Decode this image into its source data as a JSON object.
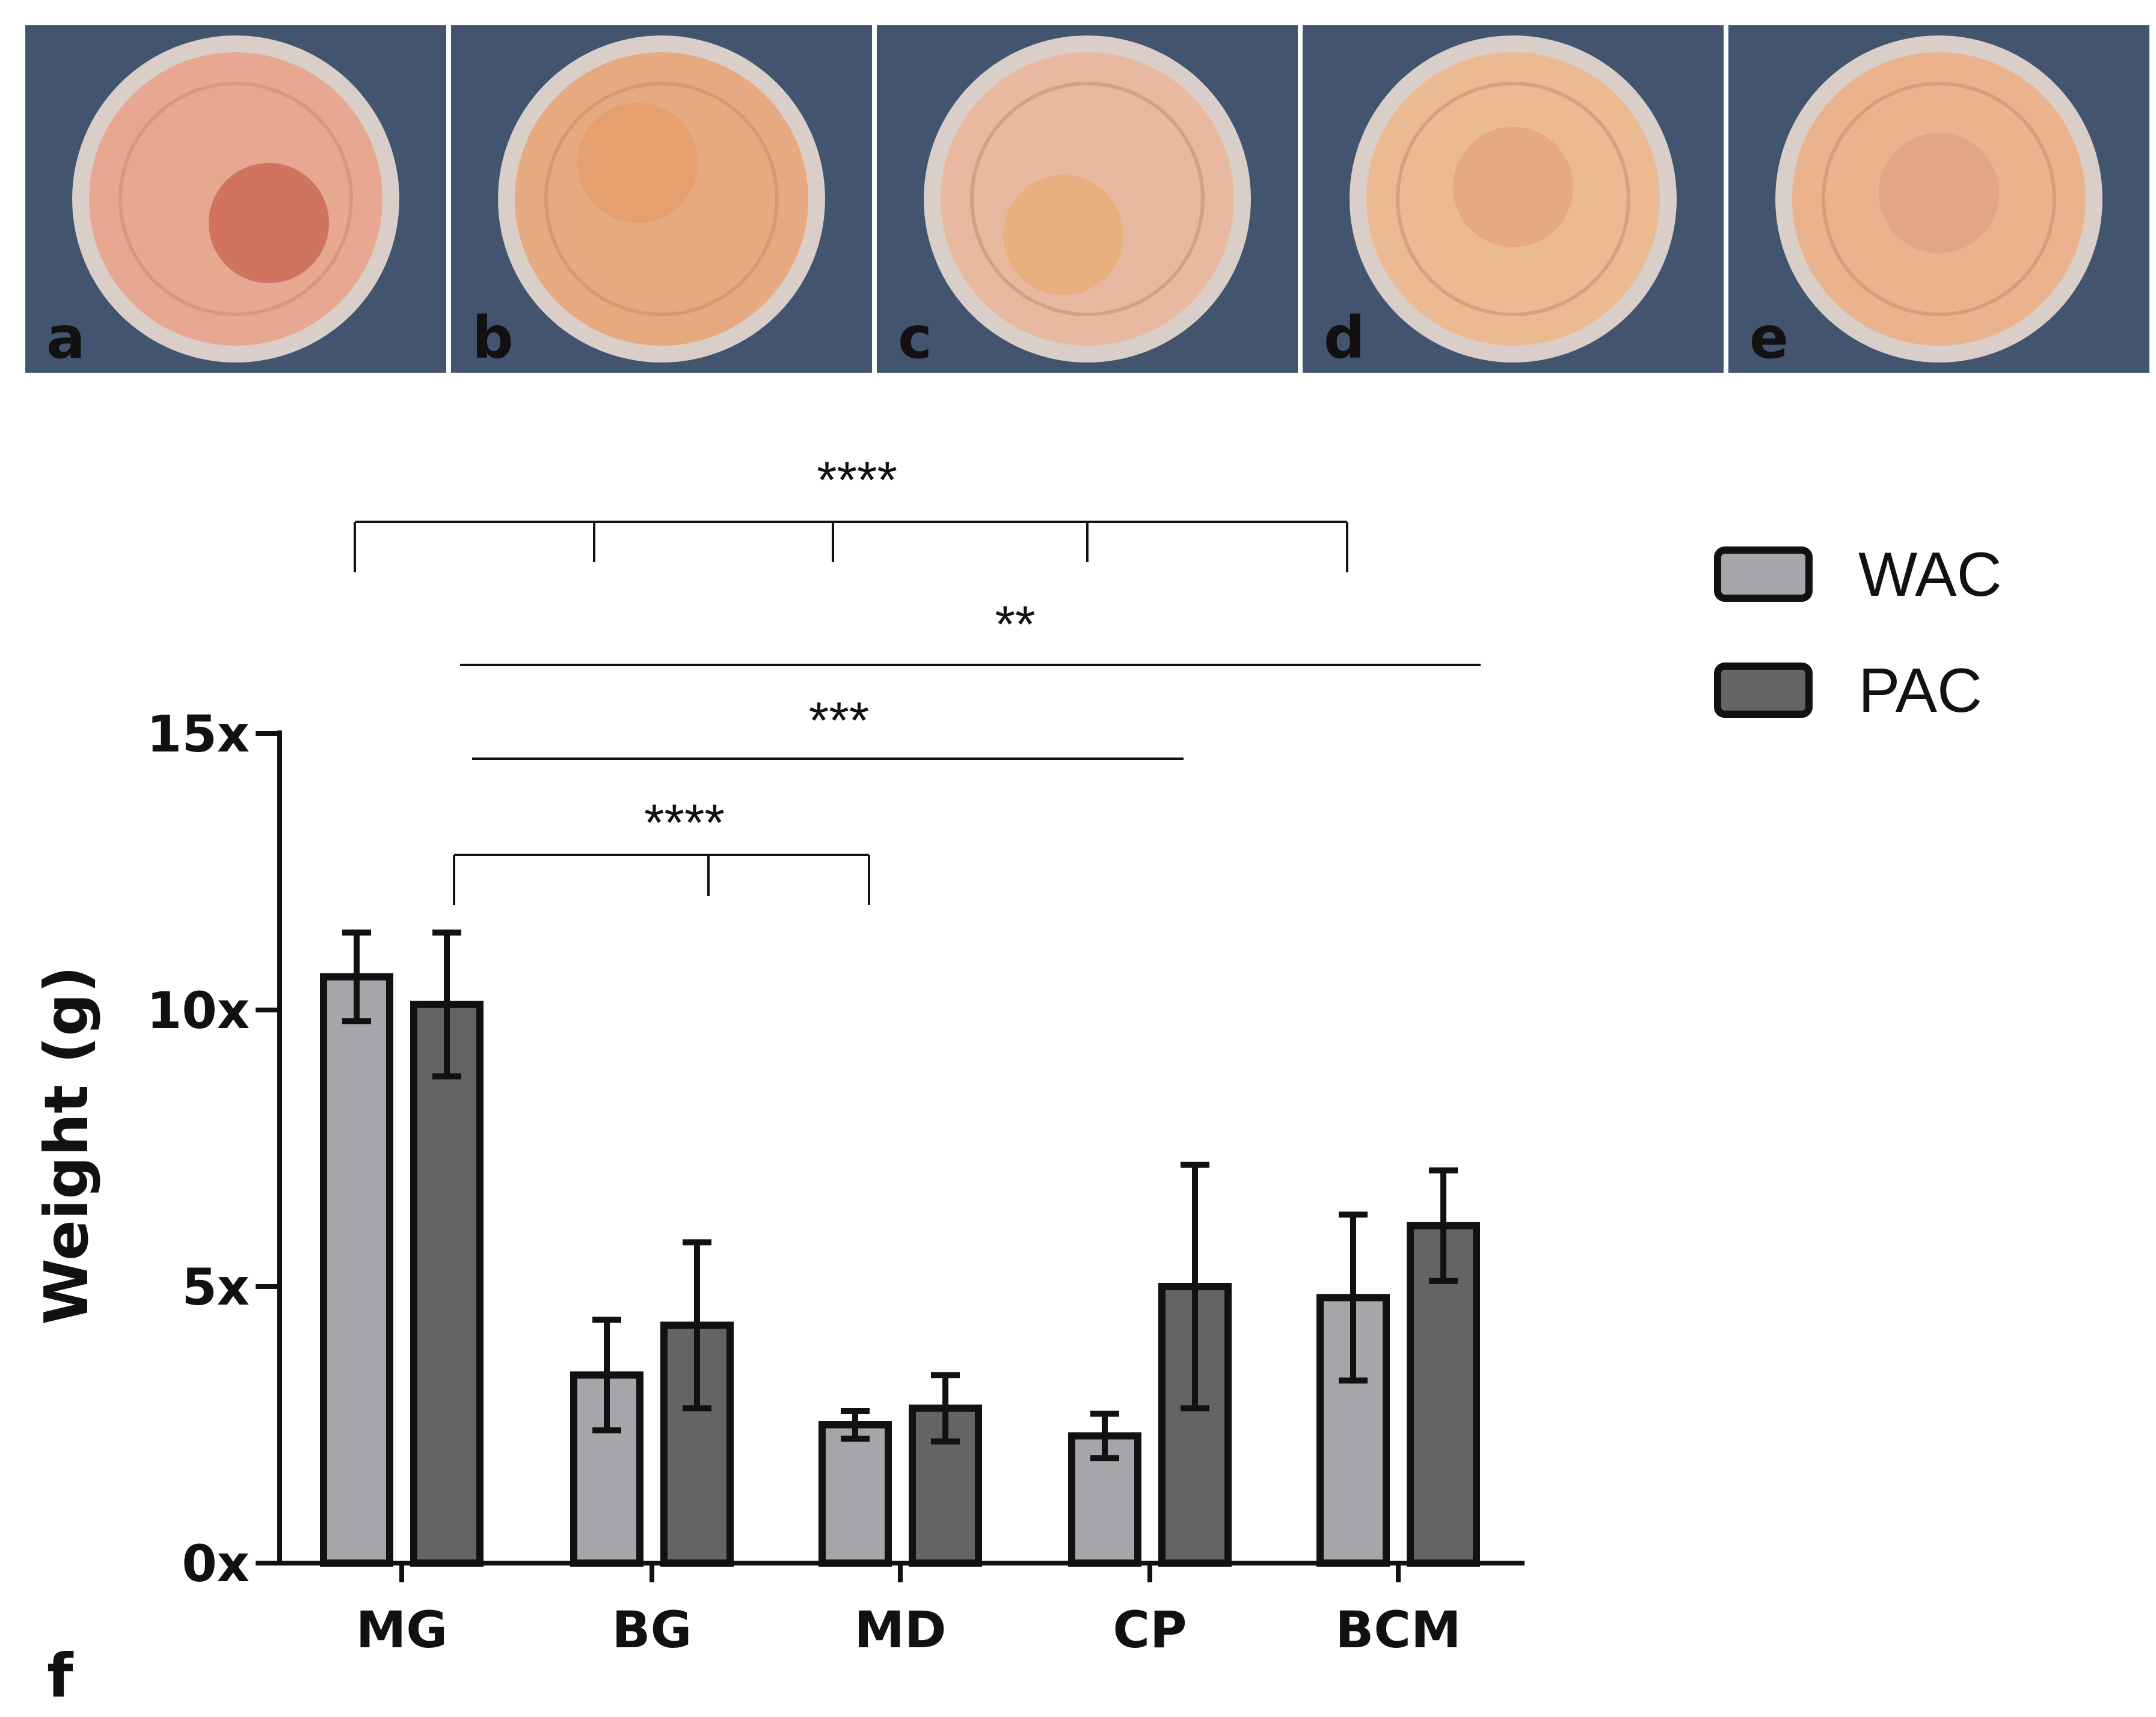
{
  "photo_panels": [
    {
      "label": "a",
      "well_fill": "#e8a48e",
      "disc_fill": "#d0735f"
    },
    {
      "label": "b",
      "well_fill": "#e8a77c",
      "disc_fill": "#e6a06f"
    },
    {
      "label": "c",
      "well_fill": "#eab69e",
      "disc_fill": "#e8b07f"
    },
    {
      "label": "d",
      "well_fill": "#ecb890",
      "disc_fill": "#e6aa82"
    },
    {
      "label": "e",
      "well_fill": "#ebb18a",
      "disc_fill": "#e2a585"
    }
  ],
  "colors": {
    "photo_background": "#42546e",
    "wac": "#a6a6aa",
    "pac": "#646464",
    "outline": "#111111"
  },
  "chart_data": {
    "type": "bar",
    "panel_label": "f",
    "title": "",
    "xlabel": "",
    "ylabel": "Weight (g)",
    "ylim": [
      0,
      15
    ],
    "yticks": [
      0,
      5,
      10,
      15
    ],
    "ytick_labels": [
      "0x",
      "5x",
      "10x",
      "15x"
    ],
    "categories": [
      "MG",
      "BG",
      "MD",
      "CP",
      "BCM"
    ],
    "series": [
      {
        "name": "WAC",
        "values": [
          10.6,
          3.4,
          2.5,
          2.3,
          4.8
        ],
        "errors": [
          0.8,
          1.0,
          0.25,
          0.4,
          1.5
        ]
      },
      {
        "name": "PAC",
        "values": [
          10.1,
          4.3,
          2.8,
          5.0,
          6.1
        ],
        "errors": [
          1.3,
          1.5,
          0.6,
          2.2,
          1.0
        ]
      }
    ],
    "legend_position": "top-right",
    "significance": [
      {
        "label": "****",
        "from": "MG",
        "to": [
          "BG",
          "MD",
          "CP",
          "BCM"
        ],
        "style": "bracket"
      },
      {
        "label": "**",
        "from": "MG",
        "to": [
          "BCM"
        ],
        "style": "line"
      },
      {
        "label": "***",
        "from": "MG",
        "to": [
          "CP"
        ],
        "style": "line"
      },
      {
        "label": "****",
        "from": "MG",
        "to": [
          "BG",
          "MD"
        ],
        "style": "bracket"
      }
    ]
  }
}
